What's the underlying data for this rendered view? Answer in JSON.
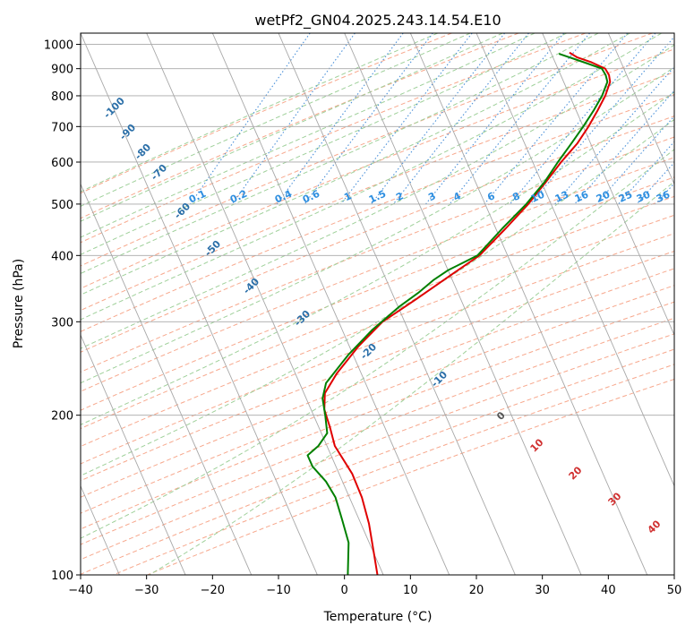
{
  "chart_data": {
    "type": "line",
    "title": "wetPf2_GN04.2025.243.14.54.E10",
    "xlabel": "Temperature (°C)",
    "ylabel": "Pressure (hPa)",
    "xlim": [
      -40,
      50
    ],
    "ylim": [
      1050,
      100
    ],
    "y_scale": "log",
    "grid": true,
    "x_ticks": [
      "−40",
      "−30",
      "−20",
      "−10",
      "0",
      "10",
      "20",
      "30",
      "40",
      "50"
    ],
    "x_tick_values": [
      -40,
      -30,
      -20,
      -10,
      0,
      10,
      20,
      30,
      40,
      50
    ],
    "y_ticks": [
      "100",
      "200",
      "300",
      "400",
      "500",
      "600",
      "700",
      "800",
      "900",
      "1000"
    ],
    "y_tick_values": [
      100,
      200,
      300,
      400,
      500,
      600,
      700,
      800,
      900,
      1000
    ],
    "series": [
      {
        "color": "#e00000",
        "values": [
          [
            -0.5,
            965
          ],
          [
            1.0,
            945
          ],
          [
            3.5,
            925
          ],
          [
            6.0,
            900
          ],
          [
            7.0,
            875
          ],
          [
            7.6,
            850
          ],
          [
            7.8,
            800
          ],
          [
            7.6,
            750
          ],
          [
            7.3,
            700
          ],
          [
            6.7,
            650
          ],
          [
            5.5,
            600
          ],
          [
            4.5,
            550
          ],
          [
            3.3,
            500
          ],
          [
            1.5,
            450
          ],
          [
            -0.7,
            400
          ],
          [
            -3.5,
            370
          ],
          [
            -7.5,
            330
          ],
          [
            -11.0,
            300
          ],
          [
            -13.0,
            270
          ],
          [
            -14.5,
            240
          ],
          [
            -15.0,
            220
          ],
          [
            -14.0,
            205
          ],
          [
            -12.0,
            190
          ],
          [
            -10.0,
            175
          ],
          [
            -5.5,
            155
          ],
          [
            -2.5,
            140
          ],
          [
            0.3,
            125
          ],
          [
            3.0,
            110
          ],
          [
            5.0,
            100
          ]
        ]
      },
      {
        "color": "#008000",
        "values": [
          [
            -2.0,
            960
          ],
          [
            0.5,
            940
          ],
          [
            3.0,
            920
          ],
          [
            5.5,
            900
          ],
          [
            6.5,
            875
          ],
          [
            7.2,
            850
          ],
          [
            7.3,
            800
          ],
          [
            7.0,
            750
          ],
          [
            6.5,
            700
          ],
          [
            5.8,
            650
          ],
          [
            5.0,
            600
          ],
          [
            4.3,
            550
          ],
          [
            3.0,
            500
          ],
          [
            1.0,
            450
          ],
          [
            -1.0,
            400
          ],
          [
            -4.5,
            375
          ],
          [
            -6.0,
            360
          ],
          [
            -7.5,
            340
          ],
          [
            -9.5,
            320
          ],
          [
            -12.0,
            290
          ],
          [
            -14.0,
            260
          ],
          [
            -15.5,
            230
          ],
          [
            -15.0,
            215
          ],
          [
            -13.5,
            200
          ],
          [
            -12.0,
            185
          ],
          [
            -12.5,
            175
          ],
          [
            -13.5,
            168
          ],
          [
            -12.0,
            160
          ],
          [
            -9.0,
            150
          ],
          [
            -6.5,
            140
          ],
          [
            -4.0,
            127
          ],
          [
            -1.5,
            115
          ],
          [
            0.5,
            100
          ]
        ]
      }
    ],
    "dry_adiabat_labels": [
      "-100",
      "-90",
      "-80",
      "-70",
      "-60",
      "-50",
      "-40",
      "-30",
      "-20",
      "-10"
    ],
    "mixing_ratio_labels": [
      "0.1",
      "0.2",
      "0.4",
      "0.6",
      "1",
      "1.5",
      "2",
      "3",
      "4",
      "6",
      "8",
      "10",
      "13",
      "16",
      "20",
      "25",
      "30",
      "36"
    ],
    "moist_adiabat_labels": [
      "0",
      "10",
      "20",
      "30",
      "40"
    ],
    "colors": {
      "isotherm": "#a8a8a8",
      "isobar": "#a8a8a8",
      "dry_adiabat": "#f7a88d",
      "moist_adiabat": "#9fd09a",
      "mixing_ratio": "#4a90d9",
      "dry_label": "#2b6fa8",
      "mix_label": "#2e8fe0",
      "moist_label_zero": "#555555",
      "moist_label": "#d03030"
    }
  }
}
